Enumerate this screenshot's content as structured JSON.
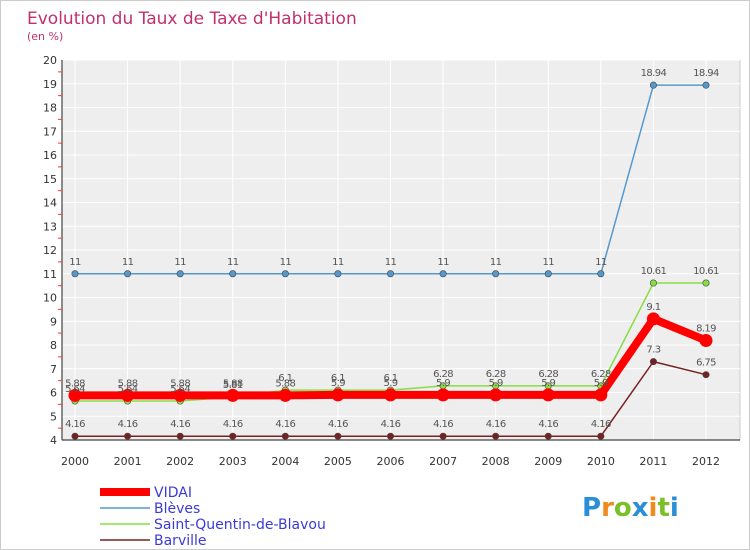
{
  "chart_data": {
    "type": "line",
    "title": "Evolution du Taux de Taxe d'Habitation",
    "subtitle": "(en %)",
    "xlabel": "",
    "ylabel": "",
    "ylim": [
      4,
      20
    ],
    "yticks": [
      4,
      5,
      6,
      7,
      8,
      9,
      10,
      11,
      12,
      13,
      14,
      15,
      16,
      17,
      18,
      19,
      20
    ],
    "x": [
      "2000",
      "2001",
      "2002",
      "2003",
      "2004",
      "2005",
      "2006",
      "2007",
      "2008",
      "2009",
      "2010",
      "2011",
      "2012"
    ],
    "series": [
      {
        "name": "VIDAI",
        "color": "#ff0000",
        "values": [
          5.88,
          5.88,
          5.88,
          5.88,
          5.88,
          5.9,
          5.9,
          5.9,
          5.9,
          5.9,
          5.9,
          9.1,
          8.19
        ],
        "labels": [
          "5.88",
          "5.88",
          "5.88",
          "5.88",
          "5.88",
          "5.9",
          "5.9",
          "5.9",
          "5.9",
          "5.9",
          "5.9",
          "9.1",
          "8.19"
        ]
      },
      {
        "name": "Blèves",
        "color": "#5599cc",
        "values": [
          11,
          11,
          11,
          11,
          11,
          11,
          11,
          11,
          11,
          11,
          11,
          18.94,
          18.94
        ],
        "labels": [
          "11",
          "11",
          "11",
          "11",
          "11",
          "11",
          "11",
          "11",
          "11",
          "11",
          "11",
          "18.94",
          "18.94"
        ]
      },
      {
        "name": "Saint-Quentin-de-Blavou",
        "color": "#88dd44",
        "values": [
          5.64,
          5.64,
          5.64,
          5.81,
          6.1,
          6.1,
          6.1,
          6.28,
          6.28,
          6.28,
          6.28,
          10.61,
          10.61
        ],
        "labels": [
          "5.64",
          "5.64",
          "5.64",
          "5.81",
          "6.1",
          "6.1",
          "6.1",
          "6.28",
          "6.28",
          "6.28",
          "6.28",
          "10.61",
          "10.61"
        ]
      },
      {
        "name": "Barville",
        "color": "#772222",
        "values": [
          4.16,
          4.16,
          4.16,
          4.16,
          4.16,
          4.16,
          4.16,
          4.16,
          4.16,
          4.16,
          4.16,
          7.3,
          6.75
        ],
        "labels": [
          "4.16",
          "4.16",
          "4.16",
          "4.16",
          "4.16",
          "4.16",
          "4.16",
          "4.16",
          "4.16",
          "4.16",
          "4.16",
          "7.3",
          "6.75"
        ]
      }
    ],
    "legend_position": "bottom-left"
  },
  "logo": {
    "letters": [
      "P",
      "r",
      "o",
      "x",
      "i",
      "t",
      "i"
    ],
    "colors": [
      "#2a8fd6",
      "#f08a1c",
      "#7bbf2a",
      "#2a8fd6",
      "#f08a1c",
      "#7bbf2a",
      "#2a8fd6"
    ]
  }
}
